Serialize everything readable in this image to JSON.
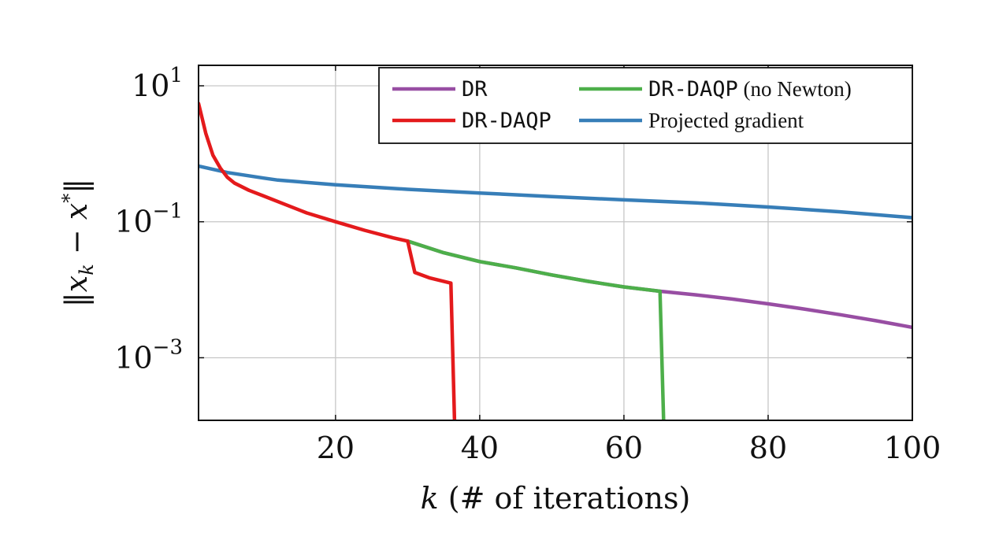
{
  "chart_data": {
    "type": "line",
    "xlabel": "k (# of iterations)",
    "ylabel": "‖x_k − x*‖",
    "xlim": [
      1,
      100
    ],
    "ylim": [
      0.00012,
      20
    ],
    "yscale": "log",
    "grid": true,
    "legend_position": "top-right",
    "x_ticks": [
      {
        "value": 20,
        "label": "20"
      },
      {
        "value": 40,
        "label": "40"
      },
      {
        "value": 60,
        "label": "60"
      },
      {
        "value": 80,
        "label": "80"
      },
      {
        "value": 100,
        "label": "100"
      }
    ],
    "y_ticks": [
      {
        "value": 10,
        "base": "10",
        "exp": "1"
      },
      {
        "value": 0.1,
        "base": "10",
        "exp": "−1"
      },
      {
        "value": 0.001,
        "base": "10",
        "exp": "−3"
      }
    ],
    "series": [
      {
        "name": "DR",
        "font": "mono",
        "color": "#984ea3",
        "points": [
          [
            30,
            0.052
          ],
          [
            35,
            0.035
          ],
          [
            40,
            0.026
          ],
          [
            45,
            0.021
          ],
          [
            50,
            0.0165
          ],
          [
            55,
            0.0133
          ],
          [
            60,
            0.011
          ],
          [
            65,
            0.0095
          ],
          [
            70,
            0.0084
          ],
          [
            75,
            0.0073
          ],
          [
            80,
            0.0062
          ],
          [
            85,
            0.0052
          ],
          [
            90,
            0.0043
          ],
          [
            95,
            0.0035
          ],
          [
            100,
            0.0028
          ]
        ]
      },
      {
        "name": "DR-DAQP",
        "font": "mono",
        "color": "#e41a1c",
        "points": [
          [
            1,
            5.5
          ],
          [
            2,
            2.0
          ],
          [
            3,
            0.95
          ],
          [
            4,
            0.62
          ],
          [
            5,
            0.45
          ],
          [
            6,
            0.37
          ],
          [
            8,
            0.29
          ],
          [
            10,
            0.24
          ],
          [
            13,
            0.18
          ],
          [
            16,
            0.135
          ],
          [
            20,
            0.1
          ],
          [
            24,
            0.075
          ],
          [
            28,
            0.058
          ],
          [
            30,
            0.052
          ],
          [
            31,
            0.018
          ],
          [
            33,
            0.015
          ],
          [
            36,
            0.0125
          ],
          [
            36.5,
            0.00012
          ]
        ]
      },
      {
        "name": "DR-DAQP (no Newton)",
        "font": "mixed",
        "mono_part": "DR-DAQP",
        "serif_part": " (no Newton)",
        "color": "#4daf4a",
        "points": [
          [
            30,
            0.052
          ],
          [
            35,
            0.035
          ],
          [
            40,
            0.026
          ],
          [
            45,
            0.021
          ],
          [
            50,
            0.0165
          ],
          [
            55,
            0.0133
          ],
          [
            60,
            0.011
          ],
          [
            65,
            0.0095
          ],
          [
            65.5,
            0.00012
          ]
        ]
      },
      {
        "name": "Projected gradient",
        "font": "serif",
        "color": "#377eb8",
        "points": [
          [
            1,
            0.66
          ],
          [
            5,
            0.53
          ],
          [
            10,
            0.44
          ],
          [
            12,
            0.41
          ],
          [
            20,
            0.35
          ],
          [
            30,
            0.3
          ],
          [
            40,
            0.265
          ],
          [
            50,
            0.235
          ],
          [
            60,
            0.21
          ],
          [
            70,
            0.19
          ],
          [
            80,
            0.165
          ],
          [
            90,
            0.14
          ],
          [
            100,
            0.115
          ]
        ]
      }
    ]
  }
}
